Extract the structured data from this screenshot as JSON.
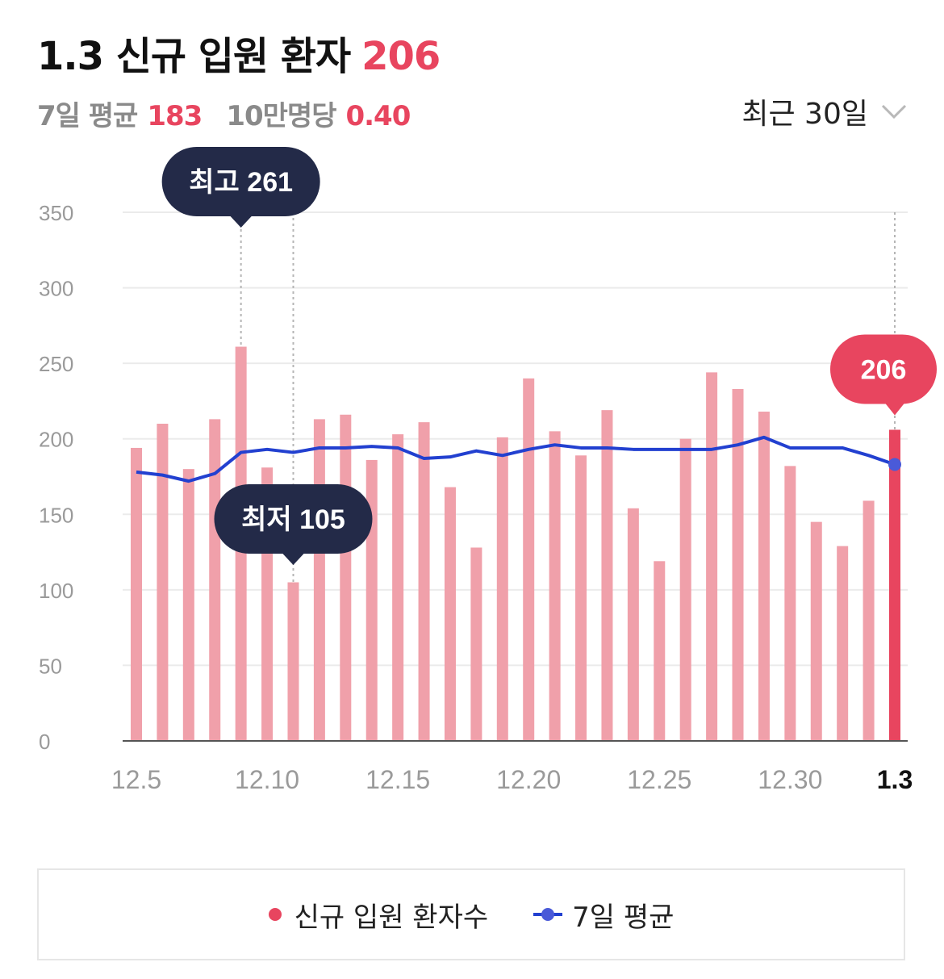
{
  "header": {
    "title": "1.3 신규 입원 환자",
    "value": "206",
    "avg_label": "7일 평균",
    "avg_value": "183",
    "per_label": "10만명당",
    "per_value": "0.40",
    "range_label": "최근 30일"
  },
  "colors": {
    "bar": "#f0a0aa",
    "bar_active": "#e8455f",
    "line": "#2240d0",
    "tooltip": "#232a48"
  },
  "icons": {
    "range_toggle": "chevron-down-icon"
  },
  "chart_data": {
    "type": "bar",
    "title": "",
    "xlabel": "",
    "ylabel": "",
    "ylim": [
      0,
      350
    ],
    "yticks": [
      "0",
      "50",
      "100",
      "150",
      "200",
      "250",
      "300",
      "350"
    ],
    "x_tick_labels": [
      "12.5",
      "12.10",
      "12.15",
      "12.20",
      "12.25",
      "12.30",
      "1.3"
    ],
    "categories": [
      "12.5",
      "12.6",
      "12.7",
      "12.8",
      "12.9",
      "12.10",
      "12.11",
      "12.12",
      "12.13",
      "12.14",
      "12.15",
      "12.16",
      "12.17",
      "12.18",
      "12.19",
      "12.20",
      "12.21",
      "12.22",
      "12.23",
      "12.24",
      "12.25",
      "12.26",
      "12.27",
      "12.28",
      "12.29",
      "12.30",
      "12.31",
      "1.1",
      "1.2",
      "1.3"
    ],
    "series": [
      {
        "name": "신규 입원 환자수",
        "type": "bar",
        "values": [
          194,
          210,
          180,
          213,
          261,
          181,
          105,
          213,
          216,
          186,
          203,
          211,
          168,
          128,
          201,
          240,
          205,
          189,
          219,
          154,
          119,
          200,
          244,
          233,
          218,
          182,
          145,
          129,
          159,
          206
        ]
      },
      {
        "name": "7일 평균",
        "type": "line",
        "values": [
          178,
          176,
          172,
          177,
          191,
          193,
          191,
          194,
          194,
          195,
          194,
          187,
          188,
          192,
          189,
          193,
          196,
          194,
          194,
          193,
          193,
          193,
          193,
          196,
          201,
          194,
          194,
          194,
          189,
          183
        ]
      }
    ],
    "annotations": [
      {
        "text": "최고 261",
        "category": "12.9"
      },
      {
        "text": "최저 105",
        "category": "12.11"
      },
      {
        "text": "206",
        "category": "1.3"
      }
    ],
    "legend": [
      "신규 입원 환자수",
      "7일 평균"
    ],
    "legend_position": "bottom",
    "grid": true
  }
}
